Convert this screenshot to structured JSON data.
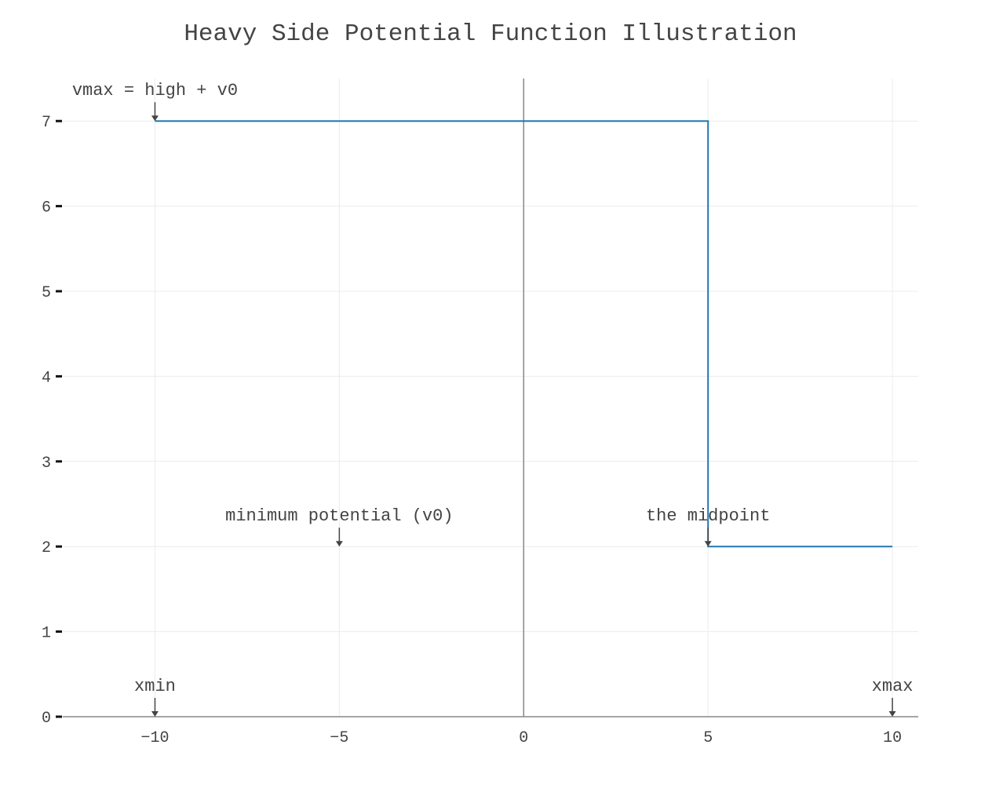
{
  "chart_data": {
    "type": "line",
    "title": "Heavy Side Potential Function Illustration",
    "xlabel": "",
    "ylabel": "",
    "xlim": [
      -12.5,
      10.7
    ],
    "ylim": [
      0,
      7.5
    ],
    "x_ticks": [
      -10,
      -5,
      0,
      5,
      10
    ],
    "x_tick_labels": [
      "−10",
      "−5",
      "0",
      "5",
      "10"
    ],
    "y_ticks": [
      0,
      1,
      2,
      3,
      4,
      5,
      6,
      7
    ],
    "y_tick_labels": [
      "0",
      "1",
      "2",
      "3",
      "4",
      "5",
      "6",
      "7"
    ],
    "grid": true,
    "legend": "none",
    "line_color": "#1f77b4",
    "series": [
      {
        "x": [
          -10,
          5,
          5,
          10
        ],
        "y": [
          7,
          7,
          2,
          2
        ]
      }
    ],
    "annotations": [
      {
        "text": "vmax = high + v0",
        "x": -10,
        "y": 7
      },
      {
        "text": "minimum potential (v0)",
        "x": -5,
        "y": 2
      },
      {
        "text": "the midpoint",
        "x": 5,
        "y": 2
      },
      {
        "text": "xmin",
        "x": -10,
        "y": 0
      },
      {
        "text": "xmax",
        "x": 10,
        "y": 0
      }
    ]
  }
}
